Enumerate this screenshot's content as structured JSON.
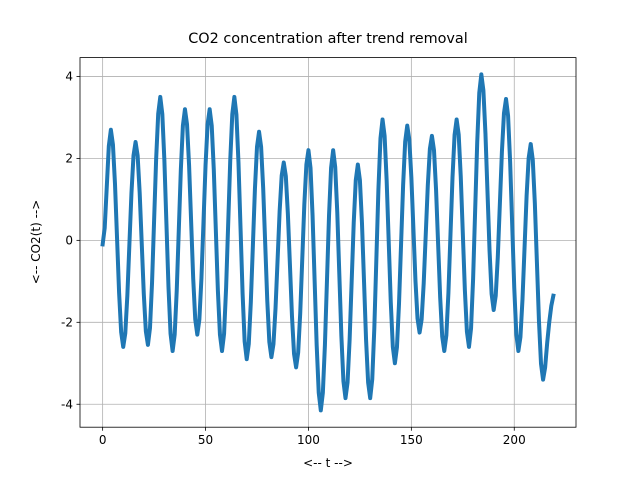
{
  "chart_data": {
    "type": "line",
    "title": "CO2 concentration after trend removal",
    "x_label": "<-- t -->",
    "y_label": "<-- CO2(t)  -->",
    "grid": true,
    "xlim": [
      -11,
      230
    ],
    "ylim": [
      -4.56,
      4.46
    ],
    "xticks": [
      0,
      50,
      100,
      150,
      200
    ],
    "yticks": [
      -4,
      -2,
      0,
      2,
      4
    ],
    "x": [
      0,
      1,
      2,
      3,
      4,
      5,
      6,
      7,
      8,
      9,
      10,
      11,
      12,
      13,
      14,
      15,
      16,
      17,
      18,
      19,
      20,
      21,
      22,
      23,
      24,
      25,
      26,
      27,
      28,
      29,
      30,
      31,
      32,
      33,
      34,
      35,
      36,
      37,
      38,
      39,
      40,
      41,
      42,
      43,
      44,
      45,
      46,
      47,
      48,
      49,
      50,
      51,
      52,
      53,
      54,
      55,
      56,
      57,
      58,
      59,
      60,
      61,
      62,
      63,
      64,
      65,
      66,
      67,
      68,
      69,
      70,
      71,
      72,
      73,
      74,
      75,
      76,
      77,
      78,
      79,
      80,
      81,
      82,
      83,
      84,
      85,
      86,
      87,
      88,
      89,
      90,
      91,
      92,
      93,
      94,
      95,
      96,
      97,
      98,
      99,
      100,
      101,
      102,
      103,
      104,
      105,
      106,
      107,
      108,
      109,
      110,
      111,
      112,
      113,
      114,
      115,
      116,
      117,
      118,
      119,
      120,
      121,
      122,
      123,
      124,
      125,
      126,
      127,
      128,
      129,
      130,
      131,
      132,
      133,
      134,
      135,
      136,
      137,
      138,
      139,
      140,
      141,
      142,
      143,
      144,
      145,
      146,
      147,
      148,
      149,
      150,
      151,
      152,
      153,
      154,
      155,
      156,
      157,
      158,
      159,
      160,
      161,
      162,
      163,
      164,
      165,
      166,
      167,
      168,
      169,
      170,
      171,
      172,
      173,
      174,
      175,
      176,
      177,
      178,
      179,
      180,
      181,
      182,
      183,
      184,
      185,
      186,
      187,
      188,
      189,
      190,
      191,
      192,
      193,
      194,
      195,
      196,
      197,
      198,
      199,
      200,
      201,
      202,
      203,
      204,
      205,
      206,
      207,
      208,
      209,
      210,
      211,
      212,
      213,
      214,
      215,
      216,
      217,
      218,
      219
    ],
    "series": [
      {
        "color": "#1f77b4",
        "values": [
          -0.1,
          0.3,
          1.3,
          2.3,
          2.7,
          2.34,
          1.38,
          0.05,
          -1.28,
          -2.24,
          -2.6,
          -2.27,
          -1.35,
          -0.1,
          1.15,
          2.07,
          2.4,
          2.07,
          1.16,
          -0.08,
          -1.31,
          -2.22,
          -2.55,
          -2.14,
          -1.04,
          0.48,
          1.99,
          3.09,
          3.5,
          3.08,
          1.95,
          0.4,
          -1.15,
          -2.28,
          -2.7,
          -2.3,
          -1.23,
          0.25,
          1.73,
          2.8,
          3.2,
          2.83,
          1.83,
          0.45,
          -0.93,
          -1.93,
          -2.3,
          -1.93,
          -0.93,
          0.45,
          1.83,
          2.83,
          3.2,
          2.8,
          1.73,
          0.25,
          -1.23,
          -2.3,
          -2.7,
          -2.28,
          -1.15,
          0.4,
          1.95,
          3.08,
          3.5,
          3.07,
          1.9,
          0.3,
          -1.3,
          -2.47,
          -2.9,
          -2.53,
          -1.51,
          -0.13,
          1.26,
          2.28,
          2.65,
          2.28,
          1.28,
          -0.1,
          -1.48,
          -2.48,
          -2.85,
          -2.53,
          -1.66,
          -0.48,
          0.71,
          1.58,
          1.9,
          1.57,
          0.65,
          -0.6,
          -1.85,
          -2.77,
          -3.1,
          -2.74,
          -1.78,
          -0.45,
          0.88,
          1.85,
          2.2,
          1.77,
          0.61,
          -0.98,
          -2.56,
          -3.72,
          -4.15,
          -3.72,
          -2.56,
          -0.98,
          0.61,
          1.77,
          2.2,
          1.79,
          0.69,
          -0.83,
          -2.34,
          -3.44,
          -3.85,
          -3.47,
          -2.43,
          -1.0,
          0.43,
          1.47,
          1.85,
          1.47,
          0.43,
          -1.0,
          -2.43,
          -3.47,
          -3.85,
          -3.39,
          -2.15,
          -0.45,
          1.25,
          2.49,
          2.95,
          2.55,
          1.46,
          -0.03,
          -1.51,
          -2.6,
          -3.0,
          -2.61,
          -1.55,
          -0.1,
          1.35,
          2.41,
          2.8,
          2.46,
          1.54,
          0.28,
          -0.99,
          -1.91,
          -2.25,
          -1.93,
          -1.05,
          0.15,
          1.35,
          2.23,
          2.55,
          2.2,
          1.24,
          -0.08,
          -1.39,
          -2.35,
          -2.7,
          -2.32,
          -1.29,
          0.13,
          1.54,
          2.57,
          2.95,
          2.58,
          1.56,
          0.18,
          -1.21,
          -2.23,
          -2.6,
          -2.15,
          -0.94,
          0.73,
          2.39,
          3.6,
          4.05,
          3.66,
          2.61,
          1.18,
          -0.26,
          -1.31,
          -1.7,
          -1.35,
          -0.41,
          0.88,
          2.16,
          3.1,
          3.45,
          3.04,
          1.91,
          0.38,
          -1.16,
          -2.29,
          -2.7,
          -2.36,
          -1.44,
          -0.18,
          1.09,
          2.01,
          2.35,
          1.96,
          0.91,
          -0.53,
          -1.96,
          -3.01,
          -3.4,
          -3.1,
          -2.5,
          -2.0,
          -1.6,
          -1.35
        ]
      }
    ]
  }
}
